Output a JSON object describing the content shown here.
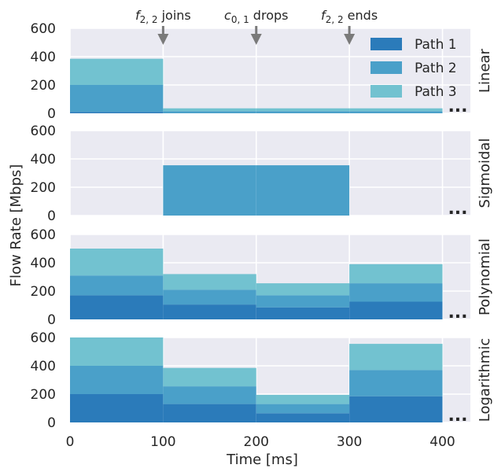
{
  "chart_data": {
    "type": "area",
    "stacked": true,
    "step": true,
    "x": [
      0,
      100,
      200,
      300,
      400
    ],
    "xlim": [
      0,
      430
    ],
    "ylim": [
      0,
      600
    ],
    "xticks": [
      "0",
      "100",
      "200",
      "300",
      "400"
    ],
    "yticks": [
      "0",
      "200",
      "400",
      "600"
    ],
    "xlabel": "Time [ms]",
    "ylabel": "Flow Rate [Mbps]",
    "grid": true,
    "legend_position": "top-right",
    "colors": [
      "#2b7bba",
      "#4aa0c9",
      "#72c2d0"
    ],
    "background": "#eaeaf2",
    "series_names": [
      "Path 1",
      "Path 2",
      "Path 3"
    ],
    "continuation_marker": "...",
    "annotations": [
      {
        "x": 100,
        "italic": "f",
        "sub": "2, 2",
        "text": " joins"
      },
      {
        "x": 200,
        "italic": "c",
        "sub": "0, 1",
        "text": " drops"
      },
      {
        "x": 300,
        "italic": "f",
        "sub": "2, 2",
        "text": " ends"
      }
    ],
    "panels": [
      {
        "title": "Linear",
        "series": [
          {
            "name": "Path 1",
            "values": [
              10,
              0,
              0,
              0
            ]
          },
          {
            "name": "Path 2",
            "values": [
              190,
              15,
              15,
              15
            ]
          },
          {
            "name": "Path 3",
            "values": [
              185,
              20,
              20,
              20
            ]
          }
        ]
      },
      {
        "title": "Sigmoidal",
        "series": [
          {
            "name": "Path 1",
            "values": [
              0,
              0,
              0,
              0
            ]
          },
          {
            "name": "Path 2",
            "values": [
              0,
              355,
              355,
              0
            ]
          },
          {
            "name": "Path 3",
            "values": [
              0,
              0,
              0,
              0
            ]
          }
        ]
      },
      {
        "title": "Polynomial",
        "series": [
          {
            "name": "Path 1",
            "values": [
              170,
              105,
              85,
              125
            ]
          },
          {
            "name": "Path 2",
            "values": [
              140,
              105,
              85,
              130
            ]
          },
          {
            "name": "Path 3",
            "values": [
              190,
              110,
              85,
              135
            ]
          }
        ]
      },
      {
        "title": "Logarithmic",
        "series": [
          {
            "name": "Path 1",
            "values": [
              200,
              130,
              65,
              185
            ]
          },
          {
            "name": "Path 2",
            "values": [
              200,
              125,
              65,
              185
            ]
          },
          {
            "name": "Path 3",
            "values": [
              200,
              130,
              65,
              185
            ]
          }
        ]
      }
    ]
  }
}
